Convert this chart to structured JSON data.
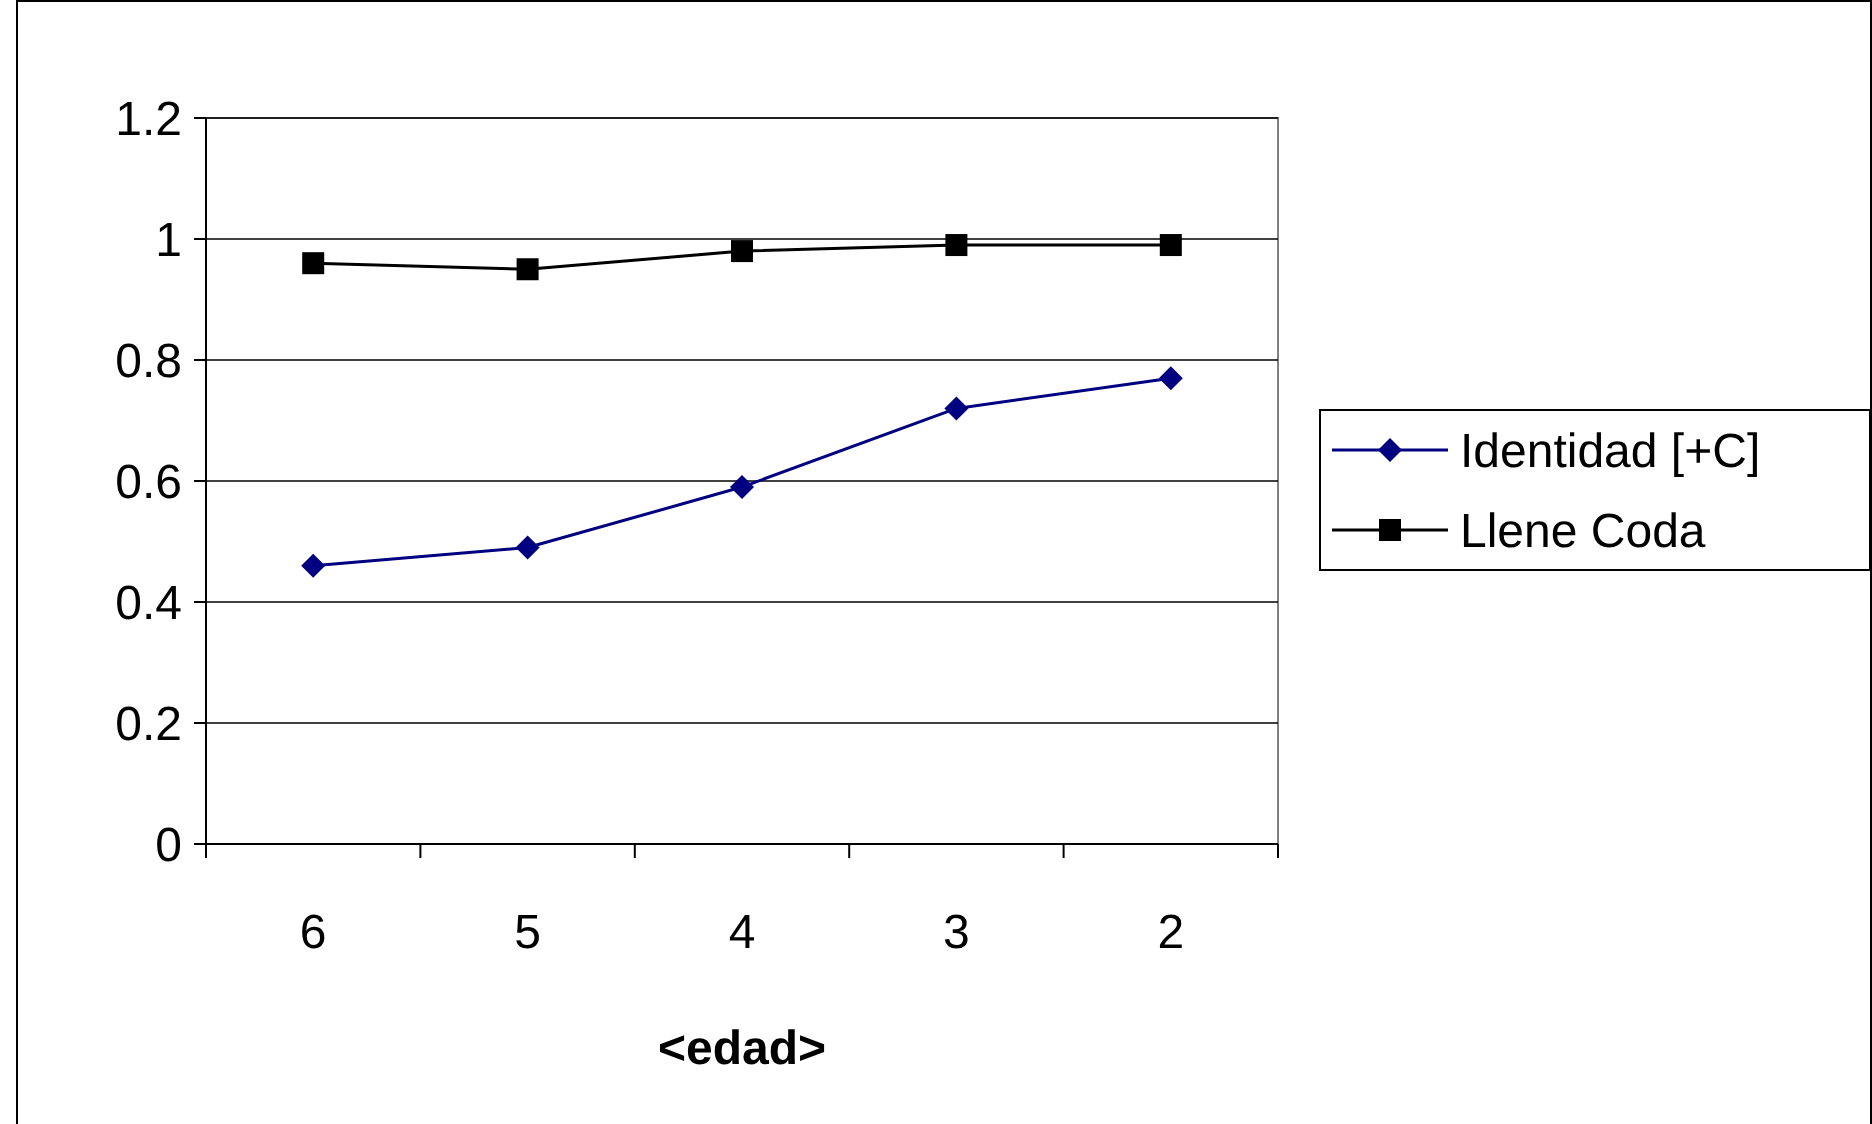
{
  "chart_data": {
    "type": "line",
    "xlabel": "<edad>",
    "categories": [
      "6",
      "5",
      "4",
      "3",
      "2"
    ],
    "series": [
      {
        "name": "Identidad [+C]",
        "color": "#000080",
        "marker": "diamond",
        "values": [
          0.46,
          0.49,
          0.59,
          0.72,
          0.77
        ]
      },
      {
        "name": "Llene Coda",
        "color": "#000000",
        "marker": "square",
        "values": [
          0.96,
          0.95,
          0.98,
          0.99,
          0.99
        ]
      }
    ],
    "ylim": [
      0,
      1.2
    ],
    "yticks": [
      0,
      0.2,
      0.4,
      0.6,
      0.8,
      1,
      1.2
    ],
    "grid": "y",
    "legend": "right",
    "line_style": "solid"
  }
}
